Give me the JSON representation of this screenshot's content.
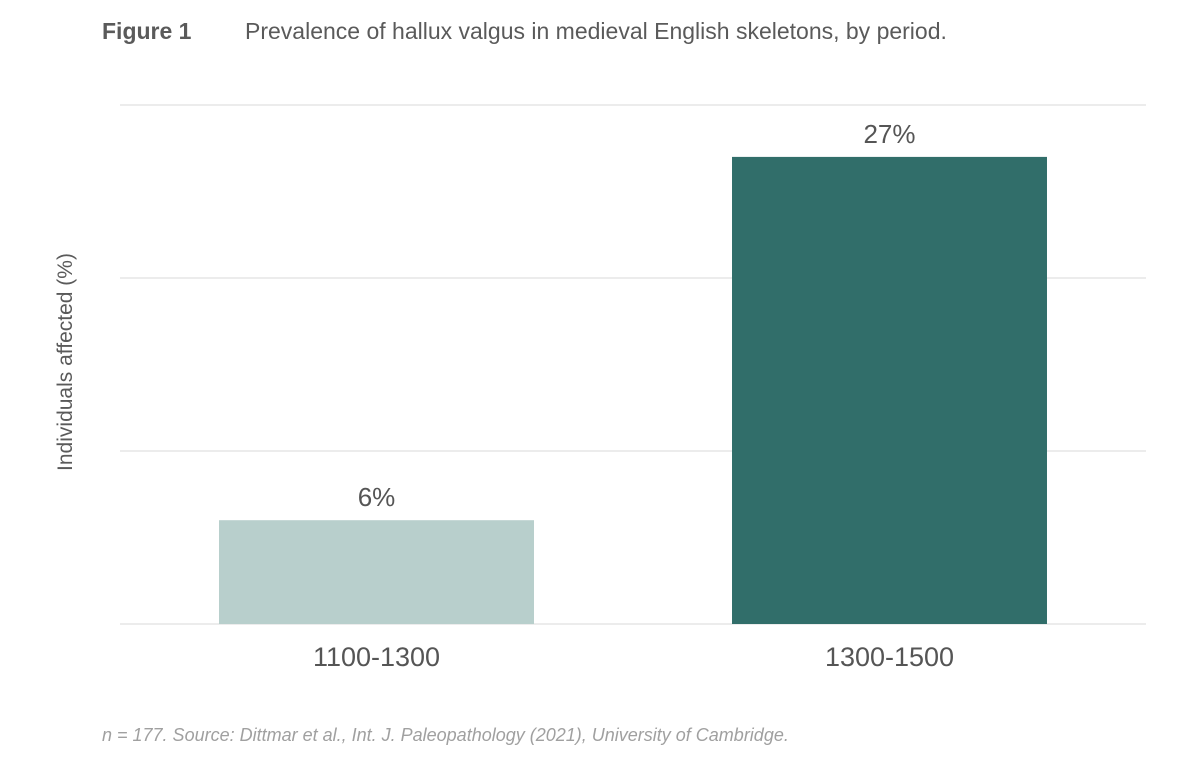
{
  "figure": {
    "label": "Figure 1",
    "caption": "Prevalence of hallux valgus in medieval English skeletons, by period."
  },
  "chart_data": {
    "type": "bar",
    "title": "Prevalence of hallux valgus in medieval English skeletons, by period.",
    "xlabel": "",
    "ylabel": "Individuals affected (%)",
    "categories": [
      "1100-1300",
      "1300-1500"
    ],
    "values": [
      6,
      27
    ],
    "value_labels": [
      "6%",
      "27%"
    ],
    "colors": [
      "#b8cfcc",
      "#316e6a"
    ],
    "ylim": [
      0,
      30
    ],
    "gridlines": [
      0,
      10,
      20,
      30
    ],
    "grid": true,
    "legend": "none"
  },
  "footnote": "n = 177. Source: Dittmar et al., Int. J. Paleopathology (2021), University of Cambridge."
}
